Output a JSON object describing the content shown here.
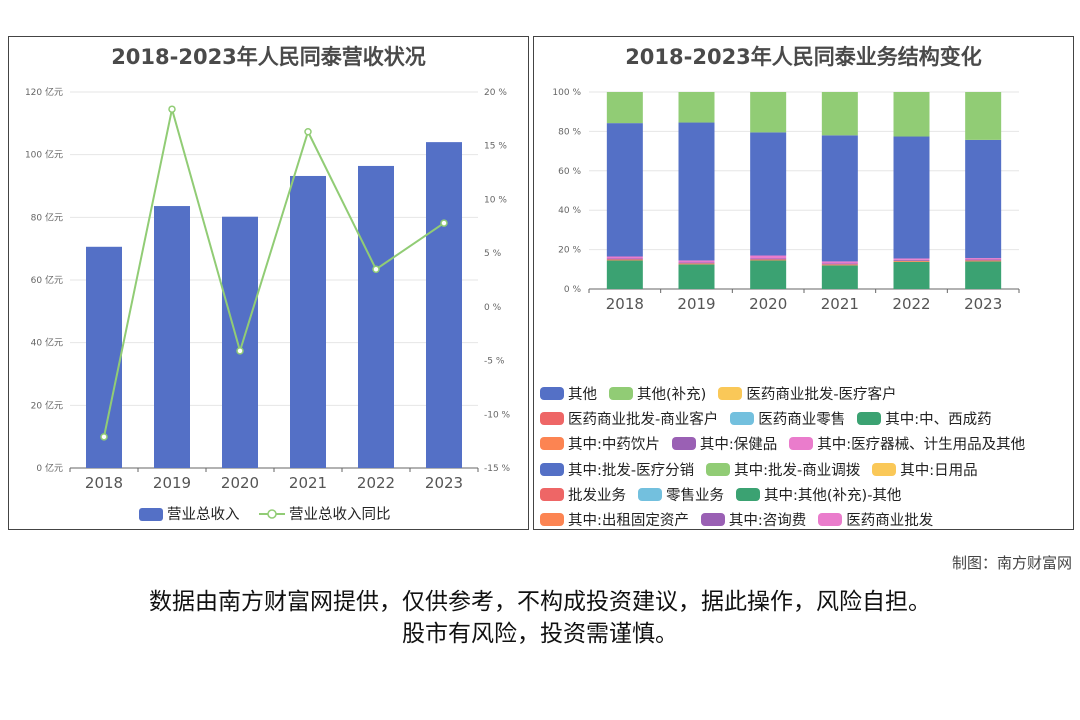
{
  "left_chart": {
    "title": "2018-2023年人民同泰营收状况",
    "legend": {
      "bar": "营业总收入",
      "line": "营业总收入同比"
    },
    "colors": {
      "bar": "#5470c6",
      "line": "#91cc75"
    },
    "y_left_ticks": [
      "0 亿元",
      "20 亿元",
      "40 亿元",
      "60 亿元",
      "80 亿元",
      "100 亿元",
      "120 亿元"
    ],
    "y_right_ticks": [
      "-15 %",
      "-10 %",
      "-5 %",
      "0 %",
      "5 %",
      "10 %",
      "15 %",
      "20 %"
    ]
  },
  "right_chart": {
    "title": "2018-2023年人民同泰业务结构变化",
    "y_ticks": [
      "0 %",
      "20 %",
      "40 %",
      "60 %",
      "80 %",
      "100 %"
    ],
    "legend_rows": [
      [
        {
          "label": "其他",
          "color": "#5470c6"
        },
        {
          "label": "其他(补充)",
          "color": "#91cc75"
        },
        {
          "label": "医药商业批发-医疗客户",
          "color": "#fac858"
        }
      ],
      [
        {
          "label": "医药商业批发-商业客户",
          "color": "#ee6666"
        },
        {
          "label": "医药商业零售",
          "color": "#73c0de"
        },
        {
          "label": "其中:中、西成药",
          "color": "#3ba272"
        }
      ],
      [
        {
          "label": "其中:中药饮片",
          "color": "#fc8452"
        },
        {
          "label": "其中:保健品",
          "color": "#9a60b4"
        },
        {
          "label": "其中:医疗器械、计生用品及其他",
          "color": "#ea7ccc"
        }
      ],
      [
        {
          "label": "其中:批发-医疗分销",
          "color": "#5470c6"
        },
        {
          "label": "其中:批发-商业调拨",
          "color": "#91cc75"
        },
        {
          "label": "其中:日用品",
          "color": "#fac858"
        }
      ],
      [
        {
          "label": "批发业务",
          "color": "#ee6666"
        },
        {
          "label": "零售业务",
          "color": "#73c0de"
        },
        {
          "label": "其中:其他(补充)-其他",
          "color": "#3ba272"
        }
      ],
      [
        {
          "label": "其中:出租固定资产",
          "color": "#fc8452"
        },
        {
          "label": "其中:咨询费",
          "color": "#9a60b4"
        },
        {
          "label": "医药商业批发",
          "color": "#ea7ccc"
        }
      ]
    ]
  },
  "chart_data": [
    {
      "type": "bar",
      "title": "2018-2023年人民同泰营收状况",
      "categories": [
        "2018",
        "2019",
        "2020",
        "2021",
        "2022",
        "2023"
      ],
      "series": [
        {
          "name": "营业总收入",
          "type": "bar",
          "axis": "left",
          "values": [
            70.6,
            83.6,
            80.2,
            93.2,
            96.4,
            104.0
          ]
        },
        {
          "name": "营业总收入同比",
          "type": "line",
          "axis": "right",
          "values": [
            -12.1,
            18.4,
            -4.1,
            16.3,
            3.5,
            7.8
          ]
        }
      ],
      "ylim_left": [
        0,
        120
      ],
      "ylim_right": [
        -15,
        20
      ],
      "grid": true,
      "legend": "bottom"
    },
    {
      "type": "bar",
      "stacked": true,
      "title": "2018-2023年人民同泰业务结构变化",
      "categories": [
        "2018",
        "2019",
        "2020",
        "2021",
        "2022",
        "2023"
      ],
      "series": [
        {
          "name": "其中:中、西成药",
          "color": "#3ba272",
          "values": [
            14.5,
            12.5,
            14.5,
            12.0,
            13.8,
            14.0
          ]
        },
        {
          "name": "其中:中药饮片",
          "color": "#fc8452",
          "values": [
            0.5,
            0.5,
            0.5,
            0.5,
            0.5,
            0.5
          ]
        },
        {
          "name": "其中:保健品",
          "color": "#9a60b4",
          "values": [
            0.5,
            0.5,
            0.5,
            0.5,
            0.5,
            0.5
          ]
        },
        {
          "name": "其中:医疗器械、计生用品及其他",
          "color": "#ea7ccc",
          "values": [
            1.0,
            1.0,
            1.5,
            1.0,
            0.7,
            0.7
          ]
        },
        {
          "name": "其他",
          "color": "#5470c6",
          "values": [
            67.7,
            70.0,
            62.5,
            64.0,
            61.9,
            60.0
          ]
        },
        {
          "name": "其他(补充)",
          "color": "#91cc75",
          "values": [
            15.8,
            15.5,
            20.5,
            22.0,
            22.6,
            24.3
          ]
        }
      ],
      "ylim": [
        0,
        100
      ],
      "grid": true,
      "legend": "bottom"
    }
  ],
  "footer": {
    "credit": "制图：南方财富网",
    "disclaimer_line1": "数据由南方财富网提供，仅供参考，不构成投资建议，据此操作，风险自担。",
    "disclaimer_line2": "股市有风险，投资需谨慎。"
  }
}
